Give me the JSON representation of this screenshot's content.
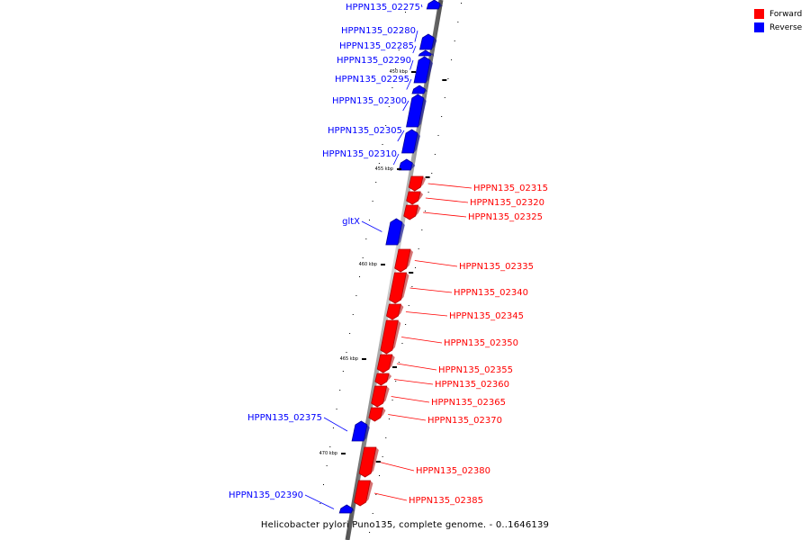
{
  "legend": {
    "forward_label": "Forward",
    "reverse_label": "Reverse",
    "forward_color": "#ff0000",
    "reverse_color": "#0000ff"
  },
  "caption": "Helicobacter pylori Puno135, complete genome. - 0..1646139",
  "scale_labels": [
    "450 kbp",
    "455 kbp",
    "460 kbp",
    "465 kbp",
    "470 kbp"
  ],
  "genes": [
    {
      "name": "HPPN135_02275",
      "strand": "reverse"
    },
    {
      "name": "HPPN135_02280",
      "strand": "reverse"
    },
    {
      "name": "HPPN135_02285",
      "strand": "reverse"
    },
    {
      "name": "HPPN135_02290",
      "strand": "reverse"
    },
    {
      "name": "HPPN135_02295",
      "strand": "reverse"
    },
    {
      "name": "HPPN135_02300",
      "strand": "reverse"
    },
    {
      "name": "HPPN135_02305",
      "strand": "reverse"
    },
    {
      "name": "HPPN135_02310",
      "strand": "reverse"
    },
    {
      "name": "HPPN135_02315",
      "strand": "forward"
    },
    {
      "name": "HPPN135_02320",
      "strand": "forward"
    },
    {
      "name": "HPPN135_02325",
      "strand": "forward"
    },
    {
      "name": "gltX",
      "strand": "reverse"
    },
    {
      "name": "HPPN135_02335",
      "strand": "forward"
    },
    {
      "name": "HPPN135_02340",
      "strand": "forward"
    },
    {
      "name": "HPPN135_02345",
      "strand": "forward"
    },
    {
      "name": "HPPN135_02350",
      "strand": "forward"
    },
    {
      "name": "HPPN135_02355",
      "strand": "forward"
    },
    {
      "name": "HPPN135_02360",
      "strand": "forward"
    },
    {
      "name": "HPPN135_02365",
      "strand": "forward"
    },
    {
      "name": "HPPN135_02370",
      "strand": "forward"
    },
    {
      "name": "HPPN135_02375",
      "strand": "reverse"
    },
    {
      "name": "HPPN135_02380",
      "strand": "forward"
    },
    {
      "name": "HPPN135_02385",
      "strand": "forward"
    },
    {
      "name": "HPPN135_02390",
      "strand": "reverse"
    }
  ]
}
